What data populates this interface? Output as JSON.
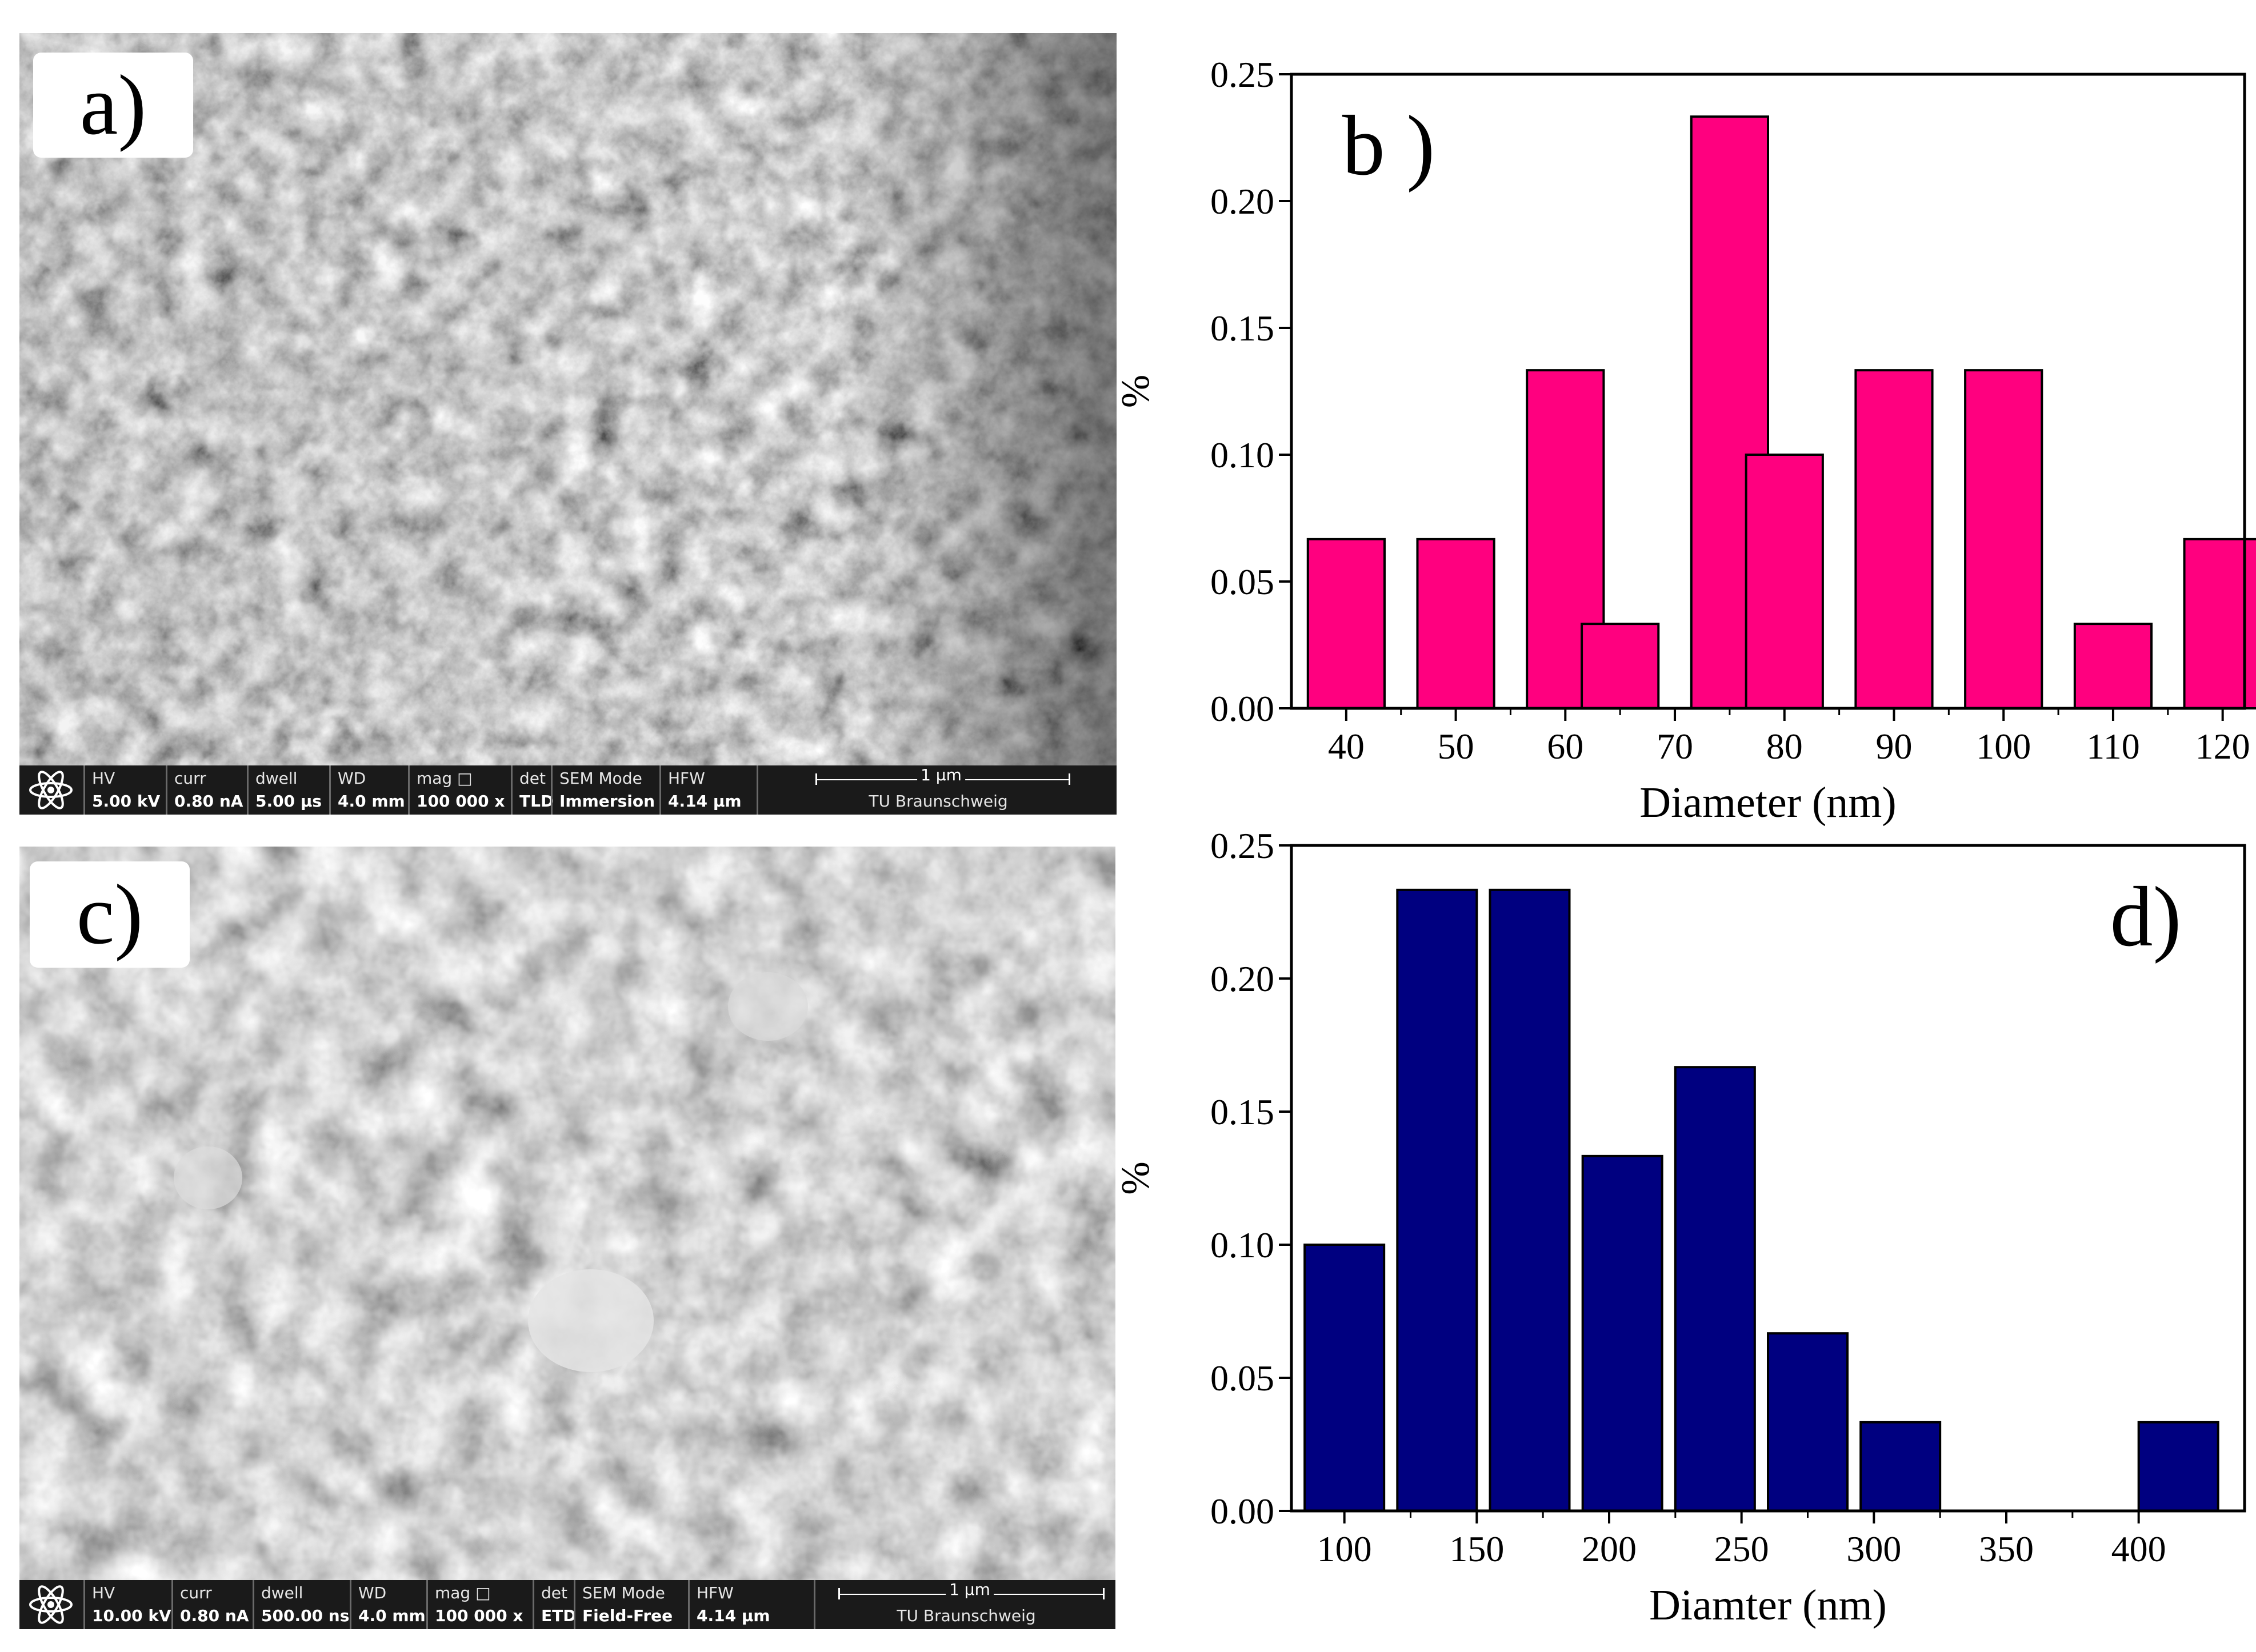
{
  "panels": {
    "a": {
      "label": "a)"
    },
    "b": {
      "label": "b )"
    },
    "c": {
      "label": "c)"
    },
    "d": {
      "label": "d)"
    }
  },
  "sem_a": {
    "fields": [
      {
        "label": "HV",
        "value": "5.00 kV"
      },
      {
        "label": "curr",
        "value": "0.80 nA"
      },
      {
        "label": "dwell",
        "value": "5.00 µs"
      },
      {
        "label": "WD",
        "value": "4.0 mm"
      },
      {
        "label": "mag □",
        "value": "100 000 x"
      },
      {
        "label": "det",
        "value": "TLD"
      },
      {
        "label": "SEM Mode",
        "value": "Immersion"
      },
      {
        "label": "HFW",
        "value": "4.14 µm"
      }
    ],
    "scale_label": "1 µm",
    "institution": "TU Braunschweig"
  },
  "sem_c": {
    "fields": [
      {
        "label": "HV",
        "value": "10.00 kV"
      },
      {
        "label": "curr",
        "value": "0.80 nA"
      },
      {
        "label": "dwell",
        "value": "500.00 ns"
      },
      {
        "label": "WD",
        "value": "4.0 mm"
      },
      {
        "label": "mag □",
        "value": "100 000 x"
      },
      {
        "label": "det",
        "value": "ETD"
      },
      {
        "label": "SEM Mode",
        "value": "Field-Free"
      },
      {
        "label": "HFW",
        "value": "4.14 µm"
      }
    ],
    "scale_label": "1 µm",
    "institution": "TU Braunschweig"
  },
  "chart_data": [
    {
      "type": "bar",
      "panel": "b",
      "x": [
        40,
        50,
        60,
        65,
        75,
        80,
        90,
        100,
        110,
        120
      ],
      "values": [
        0.0667,
        0.0667,
        0.1333,
        0.0333,
        0.2333,
        0.1,
        0.1333,
        0.1333,
        0.0333,
        0.0667
      ],
      "xlabel": "Diameter (nm)",
      "ylabel": "%",
      "xlim": [
        35,
        122
      ],
      "ylim": [
        0,
        0.25
      ],
      "xticks": [
        40,
        50,
        60,
        70,
        80,
        90,
        100,
        110,
        120
      ],
      "yticks": [
        "0.00",
        "0.05",
        "0.10",
        "0.15",
        "0.20",
        "0.25"
      ],
      "color": "#ff007f",
      "grid": false
    },
    {
      "type": "bar",
      "panel": "d",
      "x": [
        100,
        135,
        170,
        205,
        240,
        275,
        310,
        415
      ],
      "values": [
        0.1,
        0.2333,
        0.2333,
        0.1333,
        0.1667,
        0.0667,
        0.0333,
        0.0333
      ],
      "xlabel": "Diamter (nm)",
      "ylabel": "%",
      "xlim": [
        80,
        440
      ],
      "ylim": [
        0,
        0.25
      ],
      "xticks": [
        100,
        150,
        200,
        250,
        300,
        350,
        400
      ],
      "yticks": [
        "0.00",
        "0.05",
        "0.10",
        "0.15",
        "0.20",
        "0.25"
      ],
      "color": "#000080",
      "grid": false
    }
  ]
}
